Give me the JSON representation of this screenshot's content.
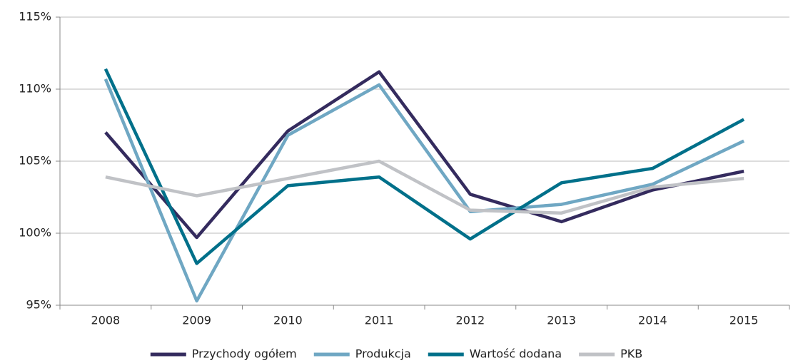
{
  "chart_data": {
    "type": "line",
    "categories": [
      "2008",
      "2009",
      "2010",
      "2011",
      "2012",
      "2013",
      "2014",
      "2015"
    ],
    "series": [
      {
        "name": "Przychody ogółem",
        "color": "#342b5e",
        "values": [
          107.0,
          99.7,
          107.1,
          111.2,
          102.7,
          100.8,
          103.0,
          104.3
        ]
      },
      {
        "name": "Produkcja",
        "color": "#6fa7c3",
        "values": [
          110.7,
          95.3,
          106.8,
          110.3,
          101.5,
          102.0,
          103.4,
          106.4
        ]
      },
      {
        "name": "Wartość dodana",
        "color": "#00708a",
        "values": [
          111.4,
          97.9,
          103.3,
          103.9,
          99.6,
          103.5,
          104.5,
          107.9
        ]
      },
      {
        "name": "PKB",
        "color": "#c0c2c6",
        "values": [
          103.9,
          102.6,
          103.8,
          105.0,
          101.6,
          101.4,
          103.2,
          103.8
        ]
      }
    ],
    "ylim": [
      95,
      115
    ],
    "yticks": [
      {
        "value": 95,
        "label": "95%"
      },
      {
        "value": 100,
        "label": "100%"
      },
      {
        "value": 105,
        "label": "105%"
      },
      {
        "value": 110,
        "label": "110%"
      },
      {
        "value": 115,
        "label": "115%"
      }
    ],
    "grid": true,
    "legend": "bottom"
  }
}
